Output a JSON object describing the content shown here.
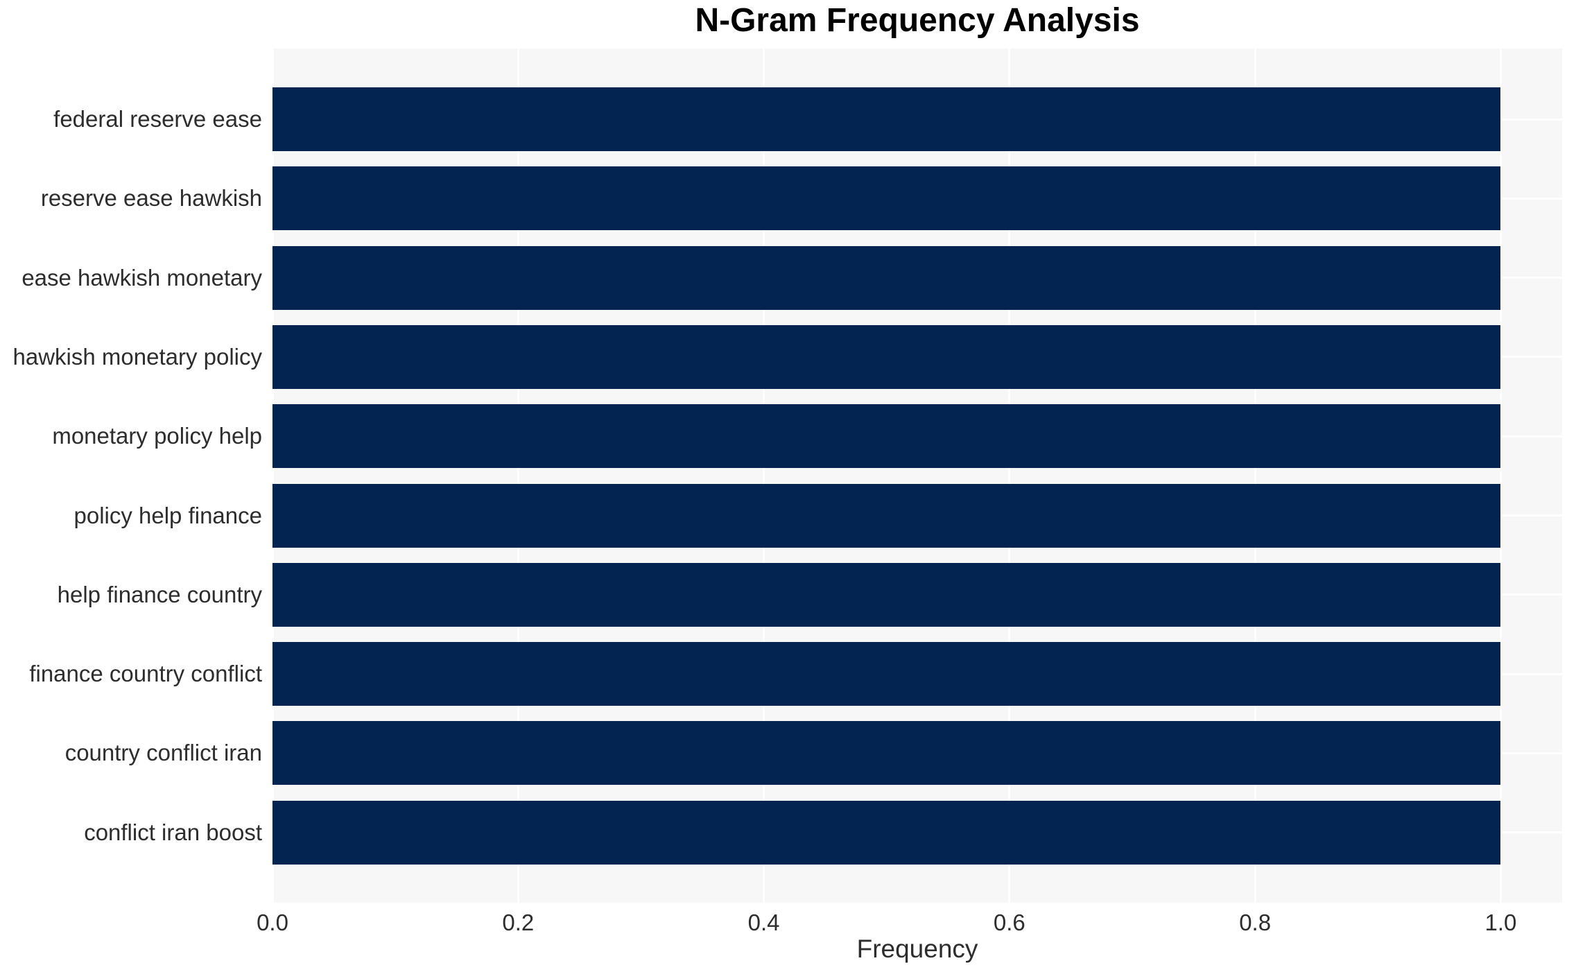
{
  "chart_data": {
    "type": "bar",
    "orientation": "horizontal",
    "title": "N-Gram Frequency Analysis",
    "xlabel": "Frequency",
    "ylabel": "",
    "categories": [
      "federal reserve ease",
      "reserve ease hawkish",
      "ease hawkish monetary",
      "hawkish monetary policy",
      "monetary policy help",
      "policy help finance",
      "help finance country",
      "finance country conflict",
      "country conflict iran",
      "conflict iran boost"
    ],
    "values": [
      1.0,
      1.0,
      1.0,
      1.0,
      1.0,
      1.0,
      1.0,
      1.0,
      1.0,
      1.0
    ],
    "xlim": [
      0,
      1.05
    ],
    "xticks": [
      0.0,
      0.2,
      0.4,
      0.6,
      0.8,
      1.0
    ],
    "xtick_labels": [
      "0.0",
      "0.2",
      "0.4",
      "0.6",
      "0.8",
      "1.0"
    ],
    "grid": true,
    "legend": false,
    "colors": {
      "bar": "#032450",
      "plot_background": "#f7f7f7",
      "gridline": "#ffffff",
      "tick_text": "#2d2d2d",
      "title_text": "#000000",
      "page_background": "#ffffff"
    }
  }
}
